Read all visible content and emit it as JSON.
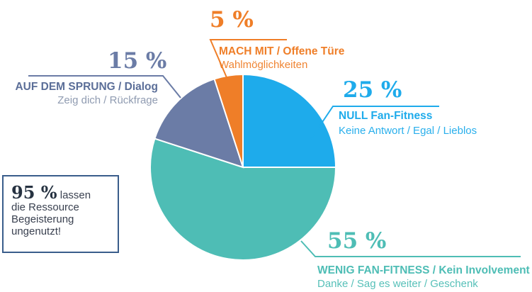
{
  "chart_data": {
    "type": "pie",
    "slices": [
      {
        "percent_label": "25 %",
        "value": 25,
        "title": "NULL Fan-Fitness",
        "subtitle": "Keine Antwort / Egal / Lieblos",
        "color": "#1eabeb"
      },
      {
        "percent_label": "55 %",
        "value": 55,
        "title": "WENIG FAN-FITNESS / Kein Involvement",
        "subtitle": "Danke / Sag es weiter / Geschenk",
        "color": "#4ebdb5"
      },
      {
        "percent_label": "15 %",
        "value": 15,
        "title": "AUF DEM SPRUNG / Dialog",
        "subtitle": "Zeig dich / Rückfrage",
        "color": "#6b7ca6"
      },
      {
        "percent_label": "5 %",
        "value": 5,
        "title": "MACH MIT / Offene Türe",
        "subtitle": "Wahlmöglichkeiten",
        "color": "#ef7e28"
      }
    ]
  },
  "note": {
    "big": "95 %",
    "text1": " lassen",
    "text2": "die Ressource",
    "text3": "Begeisterung",
    "text4": "ungenutzt!"
  }
}
